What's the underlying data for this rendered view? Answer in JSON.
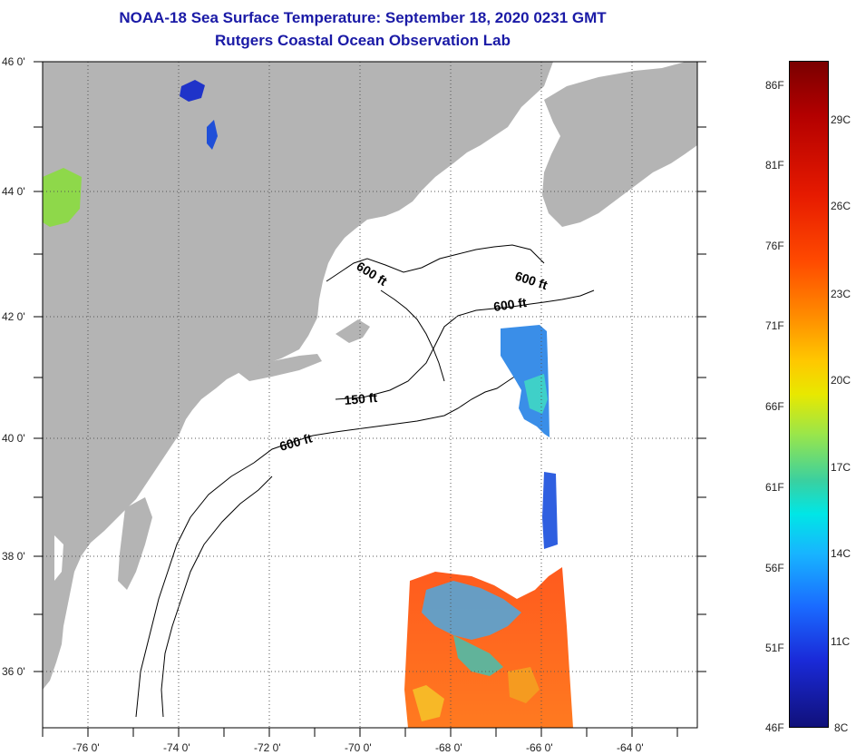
{
  "title": "NOAA-18 Sea Surface Temperature:  September 18, 2020 0231 GMT",
  "subtitle": "Rutgers Coastal Ocean Observation Lab",
  "lat_ticks": [
    "46 0'",
    "44 0'",
    "42 0'",
    "40 0'",
    "38 0'",
    "36 0'"
  ],
  "lon_ticks": [
    "-76 0'",
    "-74 0'",
    "-72 0'",
    "-70 0'",
    "-68 0'",
    "-66 0'",
    "-64 0'"
  ],
  "contour_labels": [
    "600 ft",
    "600 ft",
    "600 ft",
    "150 ft",
    "600 ft"
  ],
  "colorbar": {
    "fahrenheit": [
      "86F",
      "81F",
      "76F",
      "71F",
      "66F",
      "61F",
      "56F",
      "51F",
      "46F"
    ],
    "celsius": [
      "29C",
      "26C",
      "23C",
      "20C",
      "17C",
      "14C",
      "11C",
      "8C"
    ]
  },
  "colors": {
    "land": "#b4b4b4",
    "title": "#1a1aa6"
  }
}
